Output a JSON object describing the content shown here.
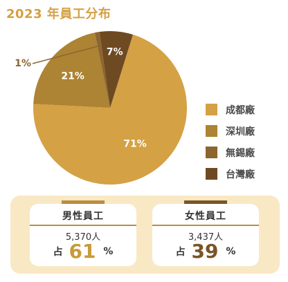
{
  "chart_data": {
    "type": "pie",
    "title": "2023 年員工分布",
    "categories": [
      "成都廠",
      "深圳廠",
      "無錫廠",
      "台灣廠"
    ],
    "values": [
      71,
      21,
      1,
      7
    ],
    "data_labels": [
      "71%",
      "21%",
      "1%",
      "7%"
    ],
    "colors": [
      "#d4a144",
      "#ad8334",
      "#8c6531",
      "#6e4a22"
    ],
    "legend": "right"
  },
  "stats": {
    "male": {
      "title": "男性員工",
      "count": "5,370人",
      "prefix": "占",
      "percent": "61",
      "unit": "%"
    },
    "female": {
      "title": "女性員工",
      "count": "3,437人",
      "prefix": "占",
      "percent": "39",
      "unit": "%"
    }
  },
  "colors": {
    "title": "#d4a042",
    "panel_background": "#f8e8c4",
    "card_accent": "#b78f40",
    "male_percent": "#c89a3a",
    "female_percent": "#7a5526"
  }
}
